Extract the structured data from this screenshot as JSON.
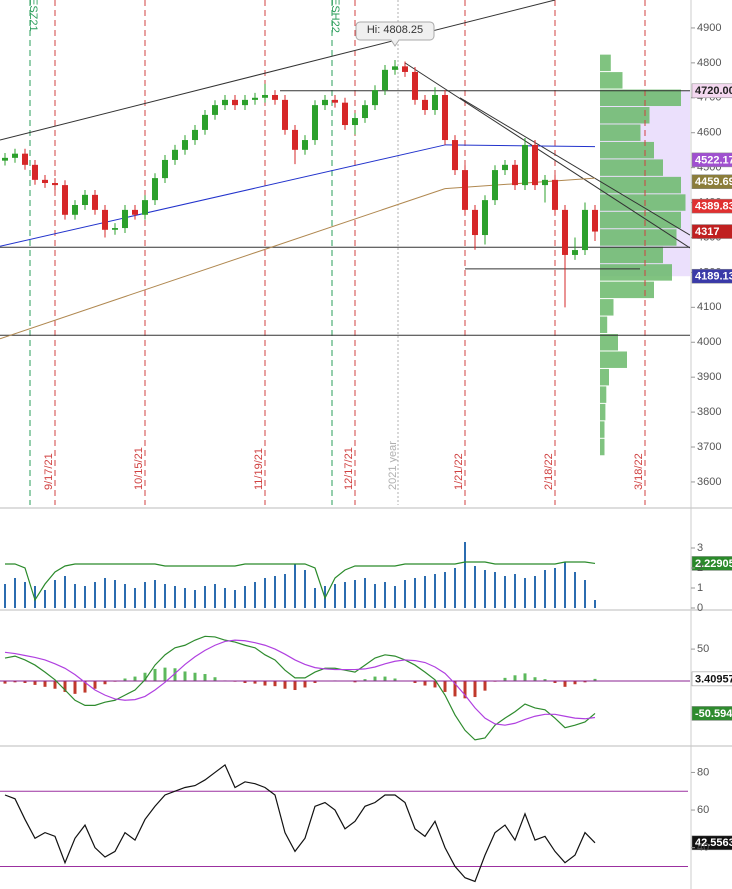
{
  "chart_data": [
    {
      "type": "candlestick",
      "categories": [
        null,
        null,
        null,
        null,
        null,
        "9/17/21",
        null,
        null,
        null,
        null,
        null,
        null,
        null,
        null,
        "10/15/21",
        null,
        null,
        null,
        null,
        null,
        null,
        null,
        null,
        null,
        null,
        null,
        "11/19/21",
        null,
        null,
        null,
        null,
        null,
        null,
        null,
        null,
        "12/17/21",
        null,
        null,
        null,
        null,
        null,
        null,
        null,
        null,
        null,
        null,
        "1/21/22",
        null,
        null,
        null,
        null,
        null,
        null,
        null,
        null,
        "2/18/22",
        null,
        null,
        null,
        null,
        null,
        null,
        null,
        null,
        "3/18/22"
      ],
      "open": [
        4520,
        4528,
        4540,
        4508,
        4465,
        4456,
        4450,
        4365,
        4393,
        4422,
        4379,
        4322,
        4327,
        4379,
        4365,
        4407,
        4470,
        4522,
        4551,
        4579,
        4608,
        4651,
        4679,
        4694,
        4679,
        4694,
        4700,
        4708,
        4694,
        4608,
        4551,
        4579,
        4679,
        4694,
        4686,
        4622,
        4642,
        4679,
        4722,
        4780,
        4790,
        4774,
        4694,
        4665,
        4708,
        4579,
        4493,
        4379,
        4307,
        4407,
        4493,
        4508,
        4450,
        4565,
        4450,
        4465,
        4379,
        4250,
        4264,
        4379,
        null,
        null,
        null,
        null,
        null
      ],
      "high": [
        4542,
        4554,
        4554,
        4522,
        4479,
        4470,
        4464,
        4407,
        4436,
        4436,
        4393,
        4341,
        4393,
        4393,
        4421,
        4484,
        4536,
        4565,
        4593,
        4622,
        4665,
        4693,
        4708,
        4708,
        4708,
        4714,
        4740,
        4722,
        4708,
        4622,
        4593,
        4693,
        4708,
        4708,
        4700,
        4656,
        4693,
        4736,
        4794,
        4808.25,
        4804,
        4788,
        4708,
        4730,
        4722,
        4593,
        4507,
        4393,
        4421,
        4507,
        4522,
        4522,
        4585,
        4579,
        4479,
        4479,
        4393,
        4300,
        4400,
        4393,
        null,
        null,
        null,
        null,
        null
      ],
      "low": [
        4506,
        4514,
        4494,
        4451,
        4442,
        4436,
        4351,
        4351,
        4379,
        4365,
        4300,
        4308,
        4313,
        4351,
        4351,
        4393,
        4456,
        4508,
        4537,
        4565,
        4594,
        4637,
        4665,
        4665,
        4665,
        4680,
        4686,
        4680,
        4594,
        4510,
        4537,
        4565,
        4665,
        4672,
        4608,
        4595,
        4628,
        4665,
        4708,
        4766,
        4760,
        4680,
        4651,
        4651,
        4565,
        4479,
        4365,
        4265,
        4280,
        4393,
        4479,
        4436,
        4436,
        4436,
        4400,
        4365,
        4100,
        4236,
        4250,
        4290,
        null,
        null,
        null,
        null,
        null
      ],
      "close": [
        4528,
        4540,
        4508,
        4465,
        4456,
        4450,
        4365,
        4393,
        4422,
        4379,
        4322,
        4327,
        4379,
        4365,
        4407,
        4470,
        4522,
        4551,
        4579,
        4608,
        4651,
        4679,
        4694,
        4679,
        4694,
        4700,
        4708,
        4694,
        4608,
        4551,
        4579,
        4679,
        4694,
        4686,
        4622,
        4642,
        4679,
        4722,
        4780,
        4790,
        4774,
        4694,
        4665,
        4708,
        4579,
        4493,
        4379,
        4307,
        4407,
        4493,
        4508,
        4450,
        4565,
        4450,
        4465,
        4379,
        4250,
        4264,
        4379,
        4317,
        null,
        null,
        null,
        null,
        null
      ],
      "up_color": "#2ca02c",
      "down_color": "#d62728",
      "date_line_color": "#d04040",
      "ylim": [
        3534,
        4980
      ],
      "yticks": [
        3600,
        3700,
        3800,
        3900,
        4000,
        4100,
        4200,
        4300,
        4400,
        4500,
        4600,
        4700,
        4800,
        4900
      ],
      "high_label": {
        "label": "Hi: 4808.25",
        "value": 4808.25,
        "index": 39
      },
      "annotations": [
        {
          "text": "ESZ21",
          "index": 2.5,
          "color": "#2a9d5a"
        },
        {
          "text": "ESH22",
          "index": 32.7,
          "color": "#2a9d5a"
        },
        {
          "text": "2021 year",
          "index": 39.3,
          "color": "#b0b0b0"
        }
      ],
      "lines": [
        {
          "from": [
            -0.5,
            4579
          ],
          "to": [
            55,
            4980
          ],
          "color": "#333333"
        },
        {
          "from": [
            40,
            4800
          ],
          "to": [
            68.5,
            4270
          ],
          "color": "#333333"
        },
        {
          "from": [
            45.5,
            4700
          ],
          "to": [
            68.5,
            4307
          ],
          "color": "#333333"
        },
        {
          "from": [
            -0.5,
            4272
          ],
          "to": [
            68.5,
            4272
          ],
          "color": "#333333"
        },
        {
          "from": [
            -0.5,
            4020
          ],
          "to": [
            68.5,
            4020
          ],
          "color": "#333333"
        },
        {
          "from": [
            27.5,
            4720
          ],
          "to": [
            68.5,
            4720
          ],
          "color": "#333333"
        },
        {
          "from": [
            46,
            4210
          ],
          "to": [
            63.5,
            4210
          ],
          "color": "#333333"
        },
        {
          "from": [
            -0.5,
            4275
          ],
          "to": [
            44,
            4565
          ],
          "color": "#2233cc"
        },
        {
          "from": [
            44,
            4565
          ],
          "to": [
            59,
            4560
          ],
          "color": "#2233cc"
        },
        {
          "from": [
            -0.5,
            4010
          ],
          "to": [
            44,
            4440
          ],
          "color": "#b08850"
        },
        {
          "from": [
            44,
            4440
          ],
          "to": [
            59,
            4470
          ],
          "color": "#b08850"
        }
      ],
      "profile": {
        "bins": [
          3700,
          3750,
          3800,
          3850,
          3900,
          3950,
          4000,
          4050,
          4100,
          4150,
          4200,
          4250,
          4300,
          4350,
          4400,
          4450,
          4500,
          4550,
          4600,
          4650,
          4700,
          4750,
          4800
        ],
        "values": [
          5,
          5,
          6,
          7,
          10,
          30,
          20,
          8,
          15,
          60,
          80,
          70,
          85,
          90,
          95,
          90,
          70,
          60,
          45,
          55,
          90,
          25,
          12
        ],
        "color": "#6ab86a"
      },
      "price_tags": {
        "values": [
          4720,
          4522.17,
          4459.69,
          4389.83,
          4317,
          4189.13
        ],
        "value_labels": [
          "4720.00",
          "4522.17",
          "4459.69",
          "4389.83",
          "4317",
          "4189.13"
        ],
        "colors": [
          "#f4d8f0",
          "#a050d0",
          "#8b7d3a",
          "#e03030",
          "#c02020",
          "#3a3aa8"
        ],
        "text_colors": [
          "#222222",
          "#ffffff",
          "#ffffff",
          "#ffffff",
          "#ffffff",
          "#ffffff"
        ]
      }
    },
    {
      "type": "bar",
      "values": [
        1.2,
        1.5,
        1.3,
        1.1,
        0.9,
        1.4,
        1.6,
        1.2,
        1.1,
        1.3,
        1.5,
        1.4,
        1.2,
        1.0,
        1.3,
        1.4,
        1.2,
        1.1,
        1.0,
        0.9,
        1.1,
        1.2,
        1.0,
        0.9,
        1.1,
        1.3,
        1.5,
        1.6,
        1.7,
        2.2,
        1.9,
        1.0,
        1.1,
        1.2,
        1.3,
        1.4,
        1.5,
        1.2,
        1.3,
        1.1,
        1.4,
        1.5,
        1.6,
        1.7,
        1.8,
        2.0,
        3.3,
        2.1,
        1.9,
        1.8,
        1.6,
        1.7,
        1.5,
        1.6,
        1.9,
        2.0,
        2.3,
        1.8,
        1.4,
        0.4
      ],
      "color": "#2b6cb0",
      "series": [
        {
          "color": "#2a8a2a",
          "values": [
            2.2,
            2.2,
            2.0,
            0.4,
            1.2,
            1.8,
            2.1,
            2.2,
            2.2,
            2.2,
            2.2,
            2.2,
            2.2,
            2.2,
            2.2,
            2.2,
            2.1,
            2.1,
            2.1,
            2.1,
            2.1,
            2.1,
            2.1,
            2.1,
            2.2,
            2.2,
            2.2,
            2.2,
            2.2,
            2.2,
            2.2,
            2.0,
            0.5,
            1.5,
            1.9,
            2.1,
            2.1,
            2.1,
            2.1,
            2.1,
            2.2,
            2.2,
            2.2,
            2.2,
            2.2,
            2.2,
            2.3,
            2.3,
            2.3,
            2.2,
            2.2,
            2.2,
            2.2,
            2.2,
            2.2,
            2.2,
            2.3,
            2.3,
            2.3,
            2.22905
          ]
        }
      ],
      "ylim": [
        0,
        4.8
      ],
      "yticks": [
        0,
        1,
        2,
        3
      ]
    },
    {
      "type": "macd",
      "histogram": {
        "values": [
          -4,
          -2,
          -3,
          -6,
          -9,
          -12,
          -17,
          -20,
          -18,
          -12,
          -5,
          -1,
          4,
          7,
          13,
          19,
          21,
          20,
          15,
          13,
          11,
          6,
          1,
          -1,
          -3,
          -4,
          -7,
          -8,
          -12,
          -14,
          -10,
          -3,
          0,
          1,
          0,
          -2,
          3,
          7,
          7,
          4,
          0,
          -3,
          -7,
          -10,
          -17,
          -24,
          -27,
          -25,
          -15,
          -1,
          5,
          9,
          12,
          6,
          3,
          -3,
          -9,
          -5,
          -2,
          3.40957
        ],
        "up_color": "#5cb85c",
        "down_color": "#c0392b"
      },
      "series": [
        {
          "color": "#2e8b2e",
          "values": [
            36,
            39,
            33,
            25,
            14,
            2,
            -14,
            -30,
            -38,
            -38,
            -33,
            -30,
            -22,
            -14,
            2,
            25,
            41,
            52,
            56,
            64,
            70,
            69,
            64,
            61,
            56,
            52,
            41,
            33,
            17,
            5,
            5,
            14,
            20,
            20,
            17,
            14,
            25,
            36,
            41,
            39,
            33,
            25,
            14,
            2,
            -22,
            -53,
            -77,
            -92,
            -89,
            -69,
            -58,
            -48,
            -36,
            -42,
            -45,
            -58,
            -73,
            -69,
            -64,
            -50.594
          ]
        },
        {
          "color": "#b040e0",
          "values": [
            45,
            43,
            40,
            37,
            33,
            27,
            20,
            10,
            -2,
            -14,
            -22,
            -28,
            -30,
            -29,
            -24,
            -14,
            -2,
            12,
            26,
            38,
            48,
            56,
            62,
            64,
            63,
            60,
            56,
            50,
            42,
            33,
            26,
            21,
            19,
            18,
            18,
            18,
            19,
            22,
            27,
            31,
            33,
            32,
            29,
            22,
            12,
            -4,
            -22,
            -42,
            -58,
            -67,
            -69,
            -66,
            -60,
            -55,
            -52,
            -52,
            -55,
            -58,
            -59,
            -57
          ]
        }
      ],
      "zero_color": "#8a2090",
      "ylim": [
        -100,
        108
      ],
      "yticks": [
        50
      ]
    },
    {
      "type": "line",
      "series": [
        {
          "color": "#111111",
          "values": [
            68,
            66,
            55,
            45,
            48,
            46,
            32,
            45,
            52,
            40,
            35,
            38,
            48,
            44,
            55,
            62,
            68,
            70,
            72,
            73,
            76,
            80,
            84,
            72,
            75,
            74,
            72,
            68,
            48,
            38,
            45,
            62,
            64,
            60,
            50,
            54,
            62,
            64,
            68,
            68,
            64,
            50,
            46,
            54,
            40,
            30,
            24,
            22,
            36,
            48,
            52,
            44,
            58,
            44,
            46,
            38,
            32,
            36,
            48,
            42.5563
          ]
        }
      ],
      "reference_lines": {
        "values": [
          70,
          30
        ],
        "color": "#9b30a0"
      },
      "ylim": [
        18,
        93
      ],
      "yticks": [
        40,
        60,
        80
      ]
    }
  ]
}
